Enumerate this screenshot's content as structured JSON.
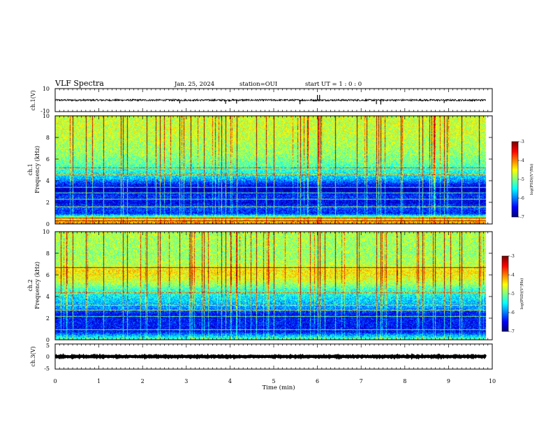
{
  "header": {
    "title": "VLF Spectra",
    "date": "Jan. 25, 2024",
    "station": "station=OUI",
    "start": "start UT =  1 : 0  : 0"
  },
  "chart_data": [
    {
      "type": "line",
      "panel": "ch1-waveform",
      "ylabel": "ch.1(V)",
      "ylim": [
        -10,
        10
      ],
      "yticks": [
        "10",
        "-10"
      ],
      "baseline": 0,
      "noise_amplitude": 0.8,
      "spikes": [
        {
          "x": 2.85,
          "y": -2.8
        },
        {
          "x": 3.9,
          "y": -3.2
        },
        {
          "x": 4.15,
          "y": -3.0
        },
        {
          "x": 5.6,
          "y": -3.5
        },
        {
          "x": 6.0,
          "y": 4.5
        },
        {
          "x": 6.05,
          "y": 4.5
        },
        {
          "x": 7.35,
          "y": -3.5
        },
        {
          "x": 7.45,
          "y": -3.8
        },
        {
          "x": 8.9,
          "y": -2.5
        }
      ]
    },
    {
      "type": "heatmap",
      "panel": "ch1-spectrogram",
      "ylabel_line1": "ch.1",
      "ylabel_line2": "Frequency (kHz)",
      "ylim": [
        0,
        10
      ],
      "yticks": [
        "0",
        "2",
        "4",
        "6",
        "8",
        "10"
      ],
      "colorbar": {
        "label": "log(PSD)(V²/Hz)",
        "range": [
          -7,
          -3
        ],
        "ticks": [
          "-3",
          "-4",
          "-5",
          "-6",
          "-7"
        ]
      },
      "mean_level_by_freq_khz": [
        {
          "f": 0.0,
          "v": -4.0
        },
        {
          "f": 0.6,
          "v": -4.6
        },
        {
          "f": 1.0,
          "v": -6.4
        },
        {
          "f": 1.6,
          "v": -6.2
        },
        {
          "f": 2.0,
          "v": -6.6
        },
        {
          "f": 2.6,
          "v": -6.3
        },
        {
          "f": 3.2,
          "v": -6.8
        },
        {
          "f": 3.6,
          "v": -6.5
        },
        {
          "f": 4.2,
          "v": -5.8
        },
        {
          "f": 4.8,
          "v": -5.4
        },
        {
          "f": 5.6,
          "v": -5.1
        },
        {
          "f": 6.5,
          "v": -4.9
        },
        {
          "f": 7.5,
          "v": -4.8
        },
        {
          "f": 8.5,
          "v": -4.7
        },
        {
          "f": 10.0,
          "v": -4.7
        }
      ],
      "narrowband_lines_khz": [
        0.3,
        0.55,
        1.6,
        2.3,
        2.9,
        3.4,
        4.6,
        5.2
      ]
    },
    {
      "type": "heatmap",
      "panel": "ch2-spectrogram",
      "ylabel_line1": "ch.2",
      "ylabel_line2": "Frequency (kHz)",
      "ylim": [
        0,
        10
      ],
      "yticks": [
        "0",
        "2",
        "4",
        "6",
        "8",
        "10"
      ],
      "colorbar": {
        "label": "log(PSD)(V²/Hz)",
        "range": [
          -7,
          -3
        ],
        "ticks": [
          "-3",
          "-4",
          "-5",
          "-6",
          "-7"
        ]
      },
      "mean_level_by_freq_khz": [
        {
          "f": 0.0,
          "v": -5.0
        },
        {
          "f": 0.8,
          "v": -6.5
        },
        {
          "f": 1.6,
          "v": -6.4
        },
        {
          "f": 2.4,
          "v": -6.5
        },
        {
          "f": 3.0,
          "v": -5.9
        },
        {
          "f": 3.8,
          "v": -5.6
        },
        {
          "f": 4.6,
          "v": -5.3
        },
        {
          "f": 5.6,
          "v": -4.6
        },
        {
          "f": 6.4,
          "v": -4.4
        },
        {
          "f": 7.0,
          "v": -4.8
        },
        {
          "f": 8.0,
          "v": -4.9
        },
        {
          "f": 10.0,
          "v": -4.8
        }
      ],
      "narrowband_lines_khz": [
        1.0,
        2.2,
        2.8,
        3.2,
        4.4,
        6.7
      ]
    },
    {
      "type": "line",
      "panel": "ch3-waveform",
      "ylabel": "ch.3(V)",
      "ylim": [
        -5,
        5
      ],
      "yticks": [
        "5",
        "0",
        "-5"
      ],
      "baseline": 0,
      "noise_amplitude": 0.15
    }
  ],
  "time_axis": {
    "xlabel": "Time (min)",
    "xlim": [
      0,
      10
    ],
    "xticks": [
      "0",
      "1",
      "2",
      "3",
      "4",
      "5",
      "6",
      "7",
      "8",
      "9",
      "10"
    ],
    "data_end_min": 9.85,
    "impulse_times_min": [
      0.4,
      0.7,
      1.1,
      1.55,
      1.65,
      2.1,
      2.4,
      2.85,
      3.1,
      3.4,
      3.8,
      3.9,
      4.15,
      4.6,
      5.0,
      5.6,
      6.0,
      6.05,
      6.4,
      6.9,
      7.35,
      7.45,
      7.9,
      8.4,
      8.9,
      9.3,
      9.7
    ]
  }
}
